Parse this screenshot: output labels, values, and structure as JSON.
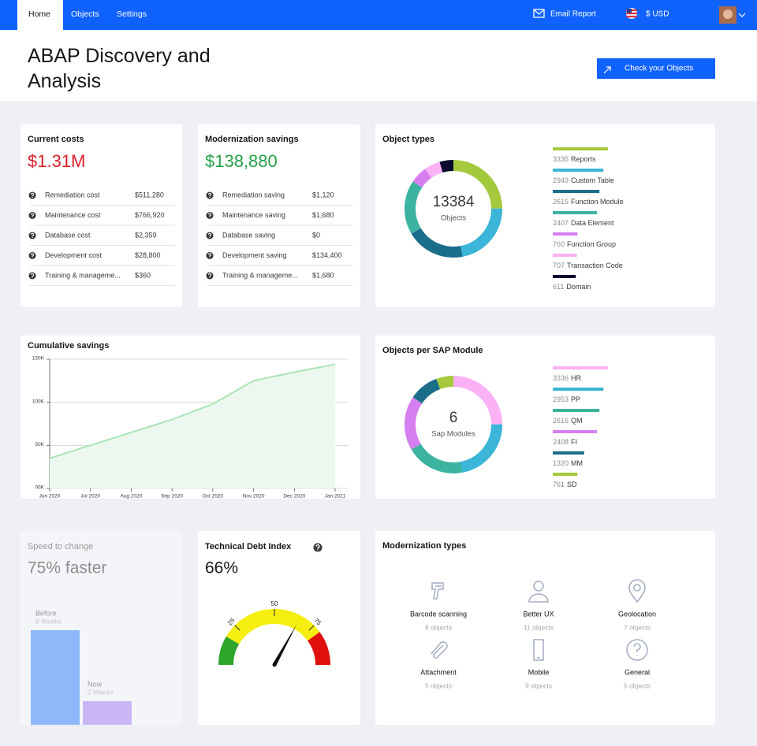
{
  "nav": {
    "items": [
      "Home",
      "Objects",
      "Settings"
    ],
    "email": "Email Report",
    "currency": "$ USD"
  },
  "header": {
    "title": "ABAP Discovery and Analysis",
    "button": "Check your Objects"
  },
  "costs": {
    "title": "Current costs",
    "total": "$1.31M",
    "rows": [
      {
        "label": "Remediation cost",
        "value": "$511,280"
      },
      {
        "label": "Maintenance cost",
        "value": "$766,920"
      },
      {
        "label": "Database cost",
        "value": "$2,359"
      },
      {
        "label": "Development cost",
        "value": "$28,800"
      },
      {
        "label": "Training & manageme...",
        "value": "$360"
      }
    ]
  },
  "savings": {
    "title": "Modernization savings",
    "total": "$138,880",
    "rows": [
      {
        "label": "Remediation saving",
        "value": "$1,120"
      },
      {
        "label": "Maintenance saving",
        "value": "$1,680"
      },
      {
        "label": "Database saving",
        "value": "$0"
      },
      {
        "label": "Development saving",
        "value": "$134,400"
      },
      {
        "label": "Training & manageme...",
        "value": "$1,680"
      }
    ]
  },
  "chart_data": [
    {
      "type": "donut",
      "title": "Object types",
      "total": 13384,
      "total_label": "Objects",
      "categories": [
        "Reports",
        "Custom Table",
        "Function Module",
        "Data Element",
        "Function Group",
        "Transaction Code",
        "Domain"
      ],
      "values": [
        3335,
        2949,
        2615,
        2407,
        760,
        707,
        611
      ],
      "colors": [
        "#a5c93d",
        "#3bb5d8",
        "#1b6e8a",
        "#3bb3a0",
        "#d67ff0",
        "#fbb1f5",
        "#0a0a2e"
      ]
    },
    {
      "type": "area",
      "title": "Cumulative savings",
      "categories": [
        "Jun 2020",
        "Jul 2020",
        "Aug 2020",
        "Sep 2020",
        "Oct 2020",
        "Nov 2020",
        "Dec 2020",
        "Jan 2021"
      ],
      "values": [
        35000,
        50000,
        65000,
        80000,
        98000,
        125000,
        135000,
        144000
      ],
      "ylim": [
        0,
        150000
      ],
      "yticks": [
        {
          "value": 0,
          "label": "00K"
        },
        {
          "value": 50000,
          "label": "50K"
        },
        {
          "value": 100000,
          "label": "100K"
        },
        {
          "value": 150000,
          "label": "150K"
        }
      ],
      "color": "#a9e5b6",
      "fill": "#ecf8ef",
      "grid": true
    },
    {
      "type": "donut",
      "title": "Objects per SAP Module",
      "total": 6,
      "total_label": "Sap Modules",
      "categories": [
        "HR",
        "PP",
        "QM",
        "FI",
        "MM",
        "SD"
      ],
      "values": [
        3336,
        2953,
        2616,
        2408,
        1320,
        761
      ],
      "colors": [
        "#fbb1f5",
        "#3bb5d8",
        "#3bb3a0",
        "#d67ff0",
        "#1b6e8a",
        "#a5c93d"
      ]
    },
    {
      "type": "bar",
      "title": "Speed to change",
      "subtitle": "75% faster",
      "categories": [
        "Before",
        "Now"
      ],
      "values": [
        8,
        2
      ],
      "value_labels": [
        "8 Weeks",
        "2 Weeks"
      ],
      "colors": [
        "#8fb8fa",
        "#c9b6f5"
      ]
    },
    {
      "type": "gauge",
      "title": "Technical Debt Index",
      "value": 66,
      "value_label": "66%",
      "lim": [
        0,
        100
      ],
      "ticks": [
        25,
        50,
        75
      ],
      "bands": [
        {
          "from": 0,
          "to": 17,
          "color": "#2ea52b"
        },
        {
          "from": 17,
          "to": 80,
          "color": "#f5ee10"
        },
        {
          "from": 80,
          "to": 100,
          "color": "#e0100f"
        }
      ]
    }
  ],
  "modernization": {
    "title": "Modernization types",
    "items": [
      {
        "label": "Barcode scanning",
        "count": "8 objects"
      },
      {
        "label": "Better UX",
        "count": "11 objects"
      },
      {
        "label": "Geolocation",
        "count": "7 objects"
      },
      {
        "label": "Attachment",
        "count": "5 objects"
      },
      {
        "label": "Mobile",
        "count": "9 objects"
      },
      {
        "label": "General",
        "count": "5 objects"
      }
    ]
  }
}
